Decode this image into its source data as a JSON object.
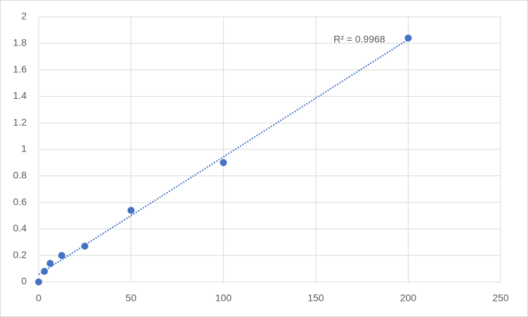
{
  "chart_data": {
    "type": "scatter",
    "annotation": "R² = 0.9968",
    "trendline": "linear",
    "x": [
      0,
      3.125,
      6.25,
      12.5,
      25,
      50,
      100,
      200
    ],
    "values": [
      0,
      0.08,
      0.14,
      0.2,
      0.27,
      0.54,
      0.9,
      1.84
    ],
    "color": "#4472c4",
    "xlim": [
      0,
      250
    ],
    "xticks": [
      0,
      50,
      100,
      150,
      200,
      250
    ],
    "ylim": [
      0,
      2
    ],
    "yticks": [
      0,
      0.2,
      0.4,
      0.6,
      0.8,
      1,
      1.2,
      1.4,
      1.6,
      1.8,
      2
    ],
    "grid": true
  }
}
